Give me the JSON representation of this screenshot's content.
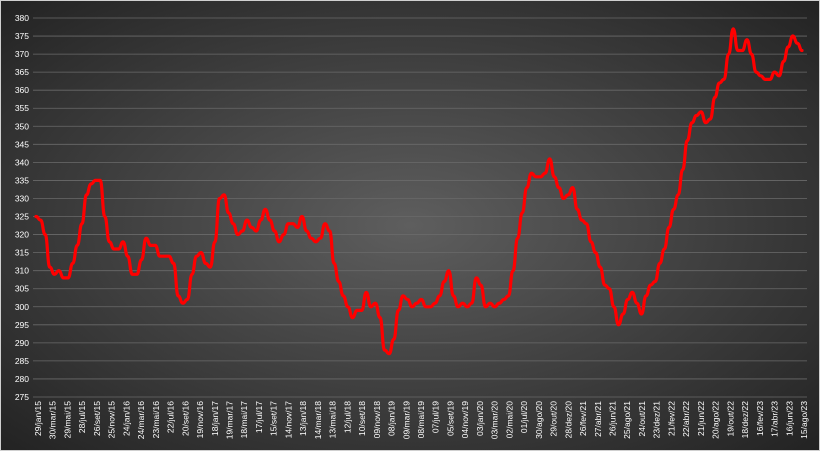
{
  "chart_data": {
    "type": "line",
    "title": "",
    "xlabel": "",
    "ylabel": "",
    "ylim": [
      275,
      380
    ],
    "yticks": [
      275,
      280,
      285,
      290,
      295,
      300,
      305,
      310,
      315,
      320,
      325,
      330,
      335,
      340,
      345,
      350,
      355,
      360,
      365,
      370,
      375,
      380
    ],
    "grid": "horizontal",
    "legend": "none",
    "colors": {
      "line": "#ff0000",
      "background_center": "#5e5e5e",
      "background_edge": "#1f1f1f",
      "grid": "#6a6a6a",
      "text": "#ffffff"
    },
    "xtick_labels": [
      "29/jan/15",
      "30/mar/15",
      "29/mai/15",
      "28/jul/15",
      "26/set/15",
      "25/nov/15",
      "24/jan/16",
      "24/mar/16",
      "23/mai/16",
      "22/jul/16",
      "20/set/16",
      "19/nov/16",
      "18/jan/17",
      "19/mar/17",
      "18/mai/17",
      "17/jul/17",
      "15/set/17",
      "14/nov/17",
      "13/jan/18",
      "14/mar/18",
      "13/mai/18",
      "12/jul/18",
      "10/set/18",
      "09/nov/18",
      "08/jan/19",
      "09/mar/19",
      "08/mai/19",
      "07/jul/19",
      "05/set/19",
      "04/nov/19",
      "03/jan/20",
      "03/mar/20",
      "02/mai/20",
      "01/jul/20",
      "30/ago/20",
      "29/out/20",
      "28/dez/20",
      "26/fev/21",
      "27/abr/21",
      "26/jun/21",
      "25/ago/21",
      "24/out/21",
      "23/dez/21",
      "21/fev/22",
      "22/abr/22",
      "21/jun/22",
      "20/ago/22",
      "19/out/22",
      "18/dez/22",
      "16/fev/23",
      "17/abr/23",
      "16/jun/23",
      "15/ago/23"
    ],
    "series": [
      {
        "values": [
          325,
          324,
          320,
          311,
          309,
          310,
          308,
          308,
          312,
          317,
          323,
          331,
          334,
          335,
          335,
          325,
          318,
          316,
          316,
          318,
          314,
          309,
          309,
          313,
          319,
          317,
          317,
          314,
          314,
          314,
          312,
          303,
          301,
          302,
          309,
          314,
          315,
          312,
          311,
          318,
          330,
          331,
          326,
          323,
          320,
          321,
          324,
          322,
          321,
          324,
          327,
          324,
          321,
          318,
          320,
          323,
          323,
          322,
          325,
          321,
          319,
          318,
          319,
          323,
          321,
          312,
          307,
          303,
          300,
          297,
          299,
          299,
          304,
          300,
          301,
          297,
          288,
          287,
          291,
          299,
          303,
          302,
          300,
          301,
          302,
          300,
          300,
          301,
          303,
          307,
          310,
          303,
          300,
          301,
          300,
          301,
          308,
          306,
          300,
          301,
          300,
          301,
          302,
          303,
          310,
          319,
          326,
          333,
          337,
          336,
          336,
          337,
          341,
          336,
          333,
          330,
          331,
          333,
          327,
          324,
          323,
          318,
          315,
          311,
          306,
          305,
          300,
          295,
          298,
          302,
          304,
          301,
          298,
          303,
          306,
          307,
          312,
          316,
          322,
          327,
          331,
          338,
          346,
          351,
          353,
          354,
          351,
          352,
          358,
          362,
          363,
          370,
          377,
          371,
          371,
          374,
          370,
          365,
          364,
          363,
          363,
          365,
          364,
          368,
          372,
          375,
          373,
          371
        ]
      }
    ]
  }
}
